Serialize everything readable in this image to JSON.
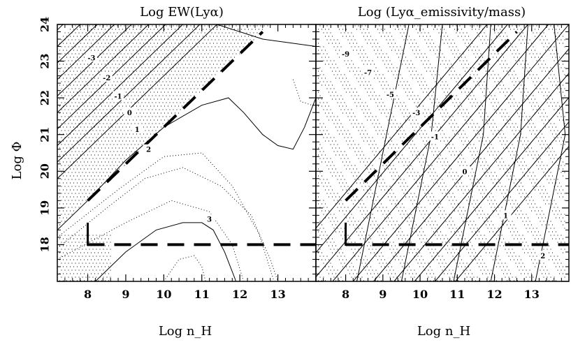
{
  "chart_data": [
    {
      "type": "contour",
      "title": "Log EW(Lyα)",
      "xlabel": "Log n_H",
      "ylabel": "Log Φ",
      "xlim": [
        7.2,
        14.0
      ],
      "ylim": [
        17.0,
        24.0
      ],
      "xticks": [
        "8",
        "9",
        "10",
        "11",
        "12",
        "13"
      ],
      "yticks": [
        "18",
        "19",
        "20",
        "21",
        "22",
        "23",
        "24"
      ],
      "contour_labels": [
        {
          "text": "-3",
          "x": 8.1,
          "y": 23.1
        },
        {
          "text": "-2",
          "x": 8.5,
          "y": 22.55
        },
        {
          "text": "-1",
          "x": 8.8,
          "y": 22.05
        },
        {
          "text": "0",
          "x": 9.1,
          "y": 21.6
        },
        {
          "text": "1",
          "x": 9.3,
          "y": 21.15
        },
        {
          "text": "2",
          "x": 9.6,
          "y": 20.6
        },
        {
          "text": "3",
          "x": 11.2,
          "y": 18.7
        }
      ],
      "dashed_lines": [
        {
          "x": [
            8.0,
            12.6
          ],
          "y": [
            19.2,
            23.8
          ]
        },
        {
          "x": [
            8.0,
            14.0
          ],
          "y": [
            18.0,
            18.0
          ]
        }
      ],
      "corner_marker": {
        "x": [
          8.0,
          8.0,
          8.4
        ],
        "y": [
          18.6,
          18.0,
          18.0
        ]
      }
    },
    {
      "type": "contour",
      "title": "Log (Lyα_emissivity/mass)",
      "xlabel": "Log n_H",
      "xlim": [
        7.2,
        14.0
      ],
      "ylim": [
        17.0,
        24.0
      ],
      "xticks": [
        "8",
        "9",
        "10",
        "11",
        "12",
        "13"
      ],
      "contour_labels": [
        {
          "text": "-9",
          "x": 8.0,
          "y": 23.2
        },
        {
          "text": "-7",
          "x": 8.6,
          "y": 22.7
        },
        {
          "text": "-5",
          "x": 9.2,
          "y": 22.1
        },
        {
          "text": "-3",
          "x": 9.9,
          "y": 21.6
        },
        {
          "text": "-1",
          "x": 10.4,
          "y": 20.95
        },
        {
          "text": "0",
          "x": 11.2,
          "y": 20.0
        },
        {
          "text": "1",
          "x": 12.3,
          "y": 18.8
        },
        {
          "text": "2",
          "x": 13.3,
          "y": 17.7
        }
      ],
      "dashed_lines": [
        {
          "x": [
            8.0,
            12.6
          ],
          "y": [
            19.2,
            23.8
          ]
        },
        {
          "x": [
            8.0,
            14.0
          ],
          "y": [
            18.0,
            18.0
          ]
        }
      ],
      "corner_marker": {
        "x": [
          8.0,
          8.0,
          8.4
        ],
        "y": [
          18.6,
          18.0,
          18.0
        ]
      }
    }
  ]
}
